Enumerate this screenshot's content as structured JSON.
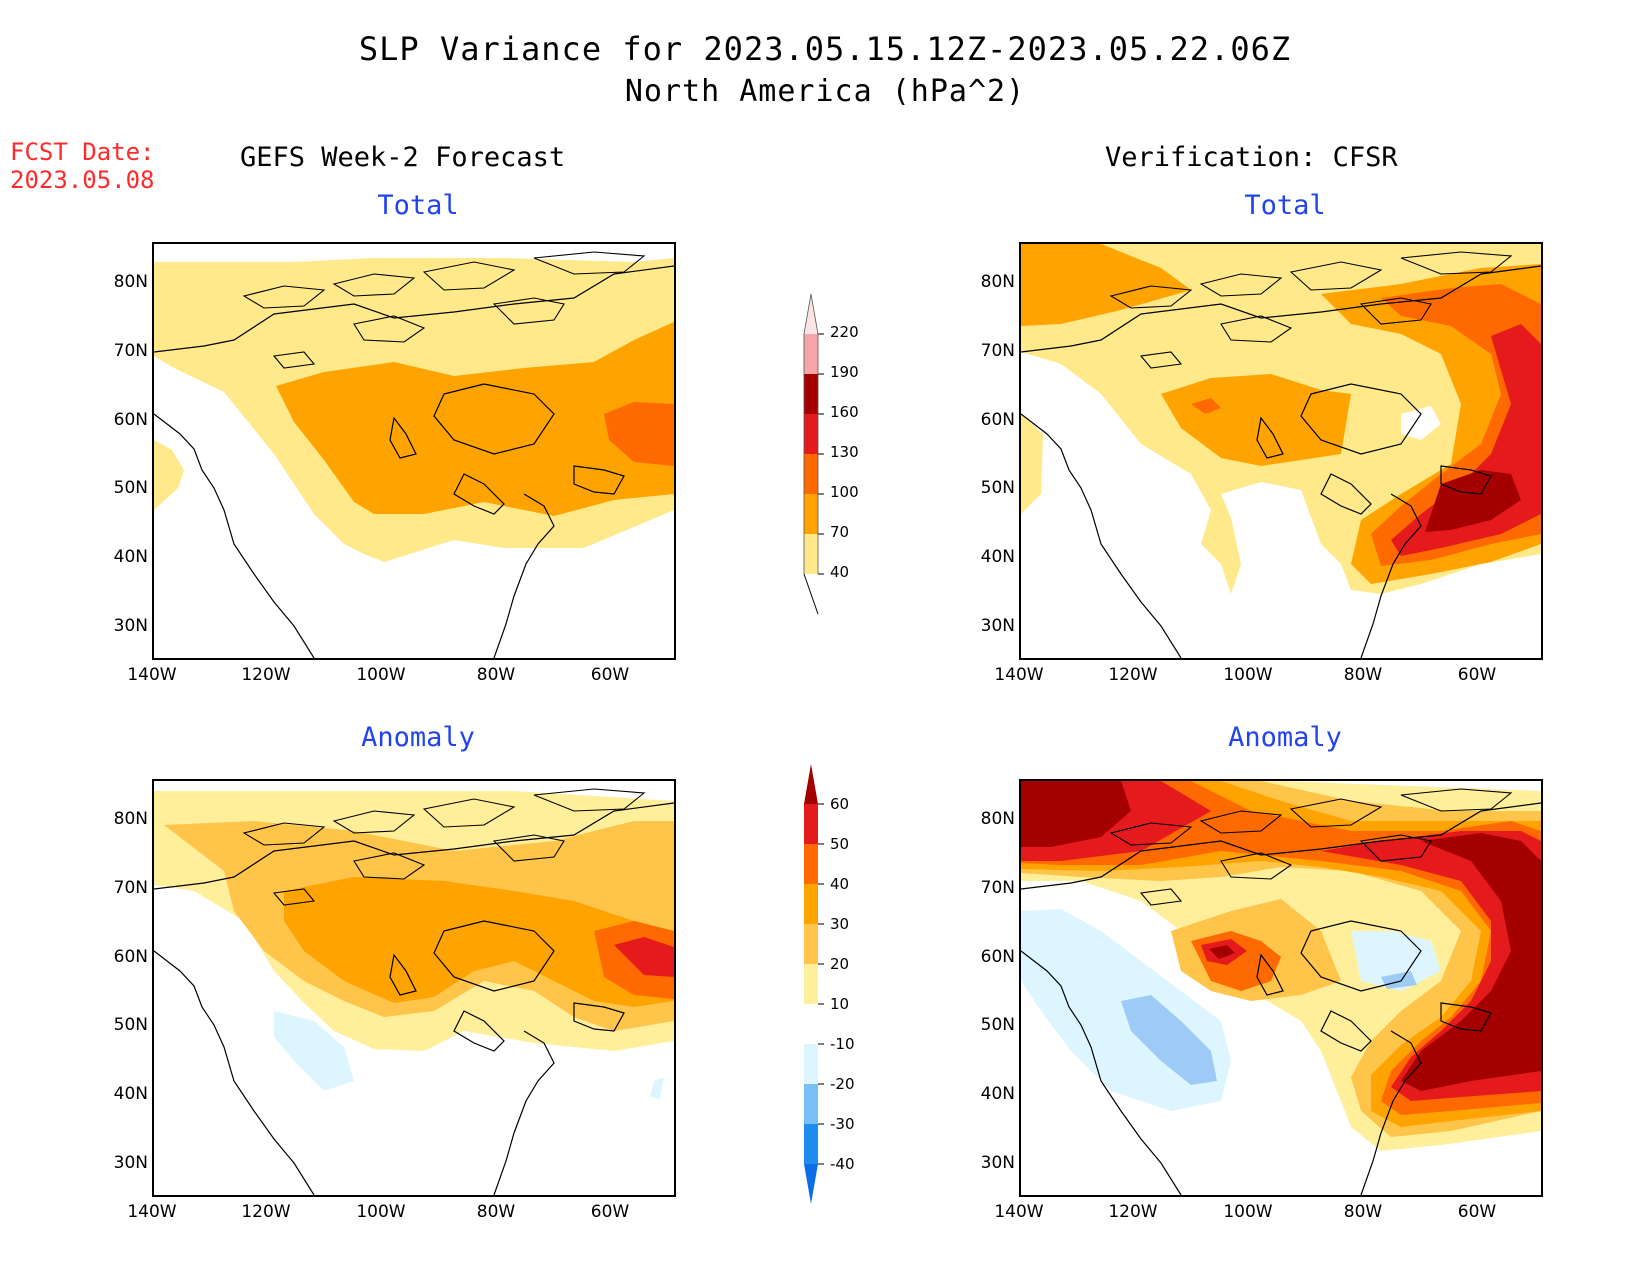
{
  "title": {
    "line1": "SLP Variance for 2023.05.15.12Z-2023.05.22.06Z",
    "line2": "North America (hPa^2)"
  },
  "forecast_date": {
    "label": "FCST Date:",
    "value": "2023.05.08"
  },
  "columns": {
    "left": "GEFS Week-2 Forecast",
    "right": "Verification: CFSR"
  },
  "panel_titles": {
    "total": "Total",
    "anomaly": "Anomaly"
  },
  "axes": {
    "lat_labels": [
      "80N",
      "70N",
      "60N",
      "50N",
      "40N",
      "30N"
    ],
    "lon_labels": [
      "140W",
      "120W",
      "100W",
      "80W",
      "60W"
    ]
  },
  "colorbar_total": {
    "levels": [
      "40",
      "70",
      "100",
      "130",
      "160",
      "190",
      "220"
    ],
    "colors": [
      "#ffe98a",
      "#ffa300",
      "#ff6a00",
      "#e41a1c",
      "#a50000",
      "#f4a6a6",
      "#fde4e4"
    ]
  },
  "colorbar_anomaly": {
    "levels": [
      "-40",
      "-30",
      "-20",
      "-10",
      "10",
      "20",
      "30",
      "40",
      "50",
      "60"
    ],
    "colors": [
      "#0b6ee6",
      "#1f8cf0",
      "#77bff5",
      "#ddf5ff",
      "#ffffff",
      "#ffee9a",
      "#ffc44a",
      "#ffa300",
      "#ff6a00",
      "#e41a1c",
      "#a50000"
    ]
  },
  "colors": {
    "c1": "#ffe98a",
    "c2": "#ffc44a",
    "c3": "#ffa300",
    "c4": "#ff6a00",
    "c5": "#e41a1c",
    "c6": "#a50000",
    "n1": "#ddf5ff",
    "n2": "#9ecbf5",
    "n3": "#77bff5",
    "accent_blue": "#2244ee",
    "fcst_red": "#ff2a2a"
  }
}
